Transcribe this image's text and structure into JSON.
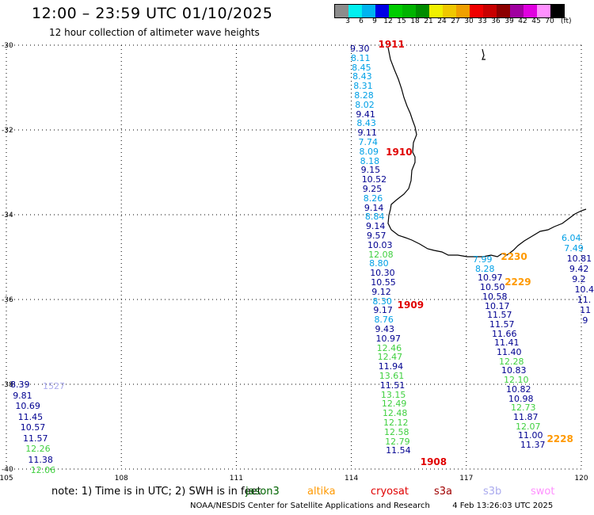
{
  "header": {
    "title": "12:00 – 23:59 UTC 01/10/2025",
    "subtitle": "12 hour collection of altimeter wave heights"
  },
  "colorbar": {
    "colors": [
      "#8c8c8c",
      "#00f0f0",
      "#00b4f0",
      "#0000e6",
      "#00cd00",
      "#00b400",
      "#008c00",
      "#f0f000",
      "#f0c800",
      "#f0a000",
      "#f00000",
      "#c80000",
      "#8c0000",
      "#a000a0",
      "#e000e0",
      "#ff90ff",
      "#000000"
    ],
    "labels": [
      "3",
      "6",
      "9",
      "12",
      "15",
      "18",
      "21",
      "24",
      "27",
      "30",
      "33",
      "36",
      "39",
      "42",
      "45",
      "70"
    ],
    "unit": "(ft)"
  },
  "axes": {
    "lon_ticks": [
      "105",
      "108",
      "111",
      "114",
      "117",
      "120"
    ],
    "lat_ticks": [
      "-30",
      "-32",
      "-34",
      "-36",
      "-38",
      "-40"
    ]
  },
  "satellite_colors": {
    "jason3": "#000090",
    "cryosat": "#00b4f0",
    "s3a": "#00d000",
    "s3b": "#00d000",
    "saral": "#aaaaee",
    "swot": "#ff90ff"
  },
  "tracks": [
    {
      "time": "1911",
      "time_color": "#e00000",
      "lon": 114.1,
      "lat_start": -30.0,
      "lat_step": -0.2,
      "values": [
        {
          "v": "9.30",
          "c": "#000090"
        },
        {
          "v": "8.11",
          "c": "#00a0e6"
        },
        {
          "v": "8.45",
          "c": "#00a0e6"
        },
        {
          "v": "8.43",
          "c": "#00a0e6"
        },
        {
          "v": "8.31",
          "c": "#00a0e6"
        },
        {
          "v": "8.28",
          "c": "#00a0e6"
        },
        {
          "v": "8.02",
          "c": "#00a0e6"
        },
        {
          "v": "9.41",
          "c": "#000090"
        },
        {
          "v": "8.43",
          "c": "#00a0e6"
        },
        {
          "v": "9.11",
          "c": "#000090"
        },
        {
          "v": "7.74",
          "c": "#00a0e6"
        },
        {
          "v": "8.09",
          "c": "#00a0e6"
        },
        {
          "v": "8.18",
          "c": "#00a0e6"
        },
        {
          "v": "9.15",
          "c": "#000090"
        },
        {
          "v": "10.52",
          "c": "#000090"
        },
        {
          "v": "9.25",
          "c": "#000090"
        },
        {
          "v": "8.26",
          "c": "#00a0e6"
        },
        {
          "v": "9.14",
          "c": "#000090"
        },
        {
          "v": "8.84",
          "c": "#00a0e6"
        },
        {
          "v": "9.14",
          "c": "#000090"
        },
        {
          "v": "9.57",
          "c": "#000090"
        },
        {
          "v": "10.03",
          "c": "#000090"
        },
        {
          "v": "12.08",
          "c": "#40d040"
        },
        {
          "v": "8.80",
          "c": "#00a0e6"
        },
        {
          "v": "10.30",
          "c": "#000090"
        },
        {
          "v": "10.55",
          "c": "#000090"
        },
        {
          "v": "9.12",
          "c": "#000090"
        },
        {
          "v": "8.30",
          "c": "#00a0e6"
        },
        {
          "v": "9.17",
          "c": "#000090"
        },
        {
          "v": "8.76",
          "c": "#00a0e6"
        },
        {
          "v": "9.43",
          "c": "#000090"
        },
        {
          "v": "10.97",
          "c": "#000090"
        },
        {
          "v": "12.46",
          "c": "#40d040"
        },
        {
          "v": "12.47",
          "c": "#40d040"
        },
        {
          "v": "11.94",
          "c": "#000090"
        },
        {
          "v": "13.61",
          "c": "#40d040"
        },
        {
          "v": "11.51",
          "c": "#000090"
        },
        {
          "v": "13.15",
          "c": "#40d040"
        },
        {
          "v": "12.49",
          "c": "#40d040"
        },
        {
          "v": "12.48",
          "c": "#40d040"
        },
        {
          "v": "12.12",
          "c": "#40d040"
        },
        {
          "v": "12.58",
          "c": "#40d040"
        },
        {
          "v": "12.79",
          "c": "#40d040"
        },
        {
          "v": "11.54",
          "c": "#000090"
        }
      ],
      "time_labels": [
        {
          "t": "1911",
          "lat": -30.0,
          "lon": 114.7,
          "c": "#e00000"
        },
        {
          "t": "1910",
          "lat": -32.55,
          "lon": 114.9,
          "c": "#e00000"
        },
        {
          "t": "1909",
          "lat": -36.15,
          "lon": 115.2,
          "c": "#e00000"
        },
        {
          "t": "1908",
          "lat": -39.85,
          "lon": 115.8,
          "c": "#e00000"
        }
      ]
    },
    {
      "time": "2230",
      "time_color": "#ff9900",
      "values": [
        {
          "v": "7.99",
          "c": "#00a0e6"
        },
        {
          "v": "8.28",
          "c": "#00a0e6"
        },
        {
          "v": "10.97",
          "c": "#000090"
        },
        {
          "v": "10.50",
          "c": "#000090"
        },
        {
          "v": "10.58",
          "c": "#000090"
        },
        {
          "v": "10.17",
          "c": "#000090"
        },
        {
          "v": "11.57",
          "c": "#000090"
        },
        {
          "v": "11.57",
          "c": "#000090"
        },
        {
          "v": "11.66",
          "c": "#000090"
        },
        {
          "v": "11.41",
          "c": "#000090"
        },
        {
          "v": "11.40",
          "c": "#000090"
        },
        {
          "v": "12.28",
          "c": "#40d040"
        },
        {
          "v": "10.83",
          "c": "#000090"
        },
        {
          "v": "12.10",
          "c": "#40d040"
        },
        {
          "v": "10.82",
          "c": "#000090"
        },
        {
          "v": "10.98",
          "c": "#000090"
        },
        {
          "v": "12.73",
          "c": "#40d040"
        },
        {
          "v": "11.87",
          "c": "#000090"
        },
        {
          "v": "12.07",
          "c": "#40d040"
        },
        {
          "v": "11.00",
          "c": "#000090"
        },
        {
          "v": "11.37",
          "c": "#000090"
        }
      ],
      "time_labels": [
        {
          "t": "2230",
          "lat": -35.0,
          "lon": 117.9,
          "c": "#ff9900"
        },
        {
          "t": "2229",
          "lat": -35.6,
          "lon": 118.0,
          "c": "#ff9900"
        },
        {
          "t": "2228",
          "lat": -39.3,
          "lon": 119.1,
          "c": "#ff9900"
        }
      ]
    },
    {
      "values": [
        {
          "v": "6.04",
          "c": "#00a0e6"
        },
        {
          "v": "7.49",
          "c": "#00a0e6"
        },
        {
          "v": "10.81",
          "c": "#000090"
        },
        {
          "v": "9.42",
          "c": "#000090"
        },
        {
          "v": "9.2",
          "c": "#000090"
        },
        {
          "v": "10.4",
          "c": "#000090"
        },
        {
          "v": "11.",
          "c": "#000090"
        },
        {
          "v": "11",
          "c": "#000090"
        },
        {
          "v": "9",
          "c": "#000090"
        }
      ]
    },
    {
      "time_labels": [
        {
          "t": "1527",
          "lat": -38.05,
          "lon": 105.95,
          "c": "#aaaaee"
        }
      ],
      "values": [
        {
          "v": "8.39",
          "c": "#000090"
        },
        {
          "v": "9.81",
          "c": "#000090"
        },
        {
          "v": "10.69",
          "c": "#000090"
        },
        {
          "v": "11.45",
          "c": "#000090"
        },
        {
          "v": "10.57",
          "c": "#000090"
        },
        {
          "v": "11.57",
          "c": "#000090"
        },
        {
          "v": "12.26",
          "c": "#40d040"
        },
        {
          "v": "11.38",
          "c": "#000090"
        },
        {
          "v": "12.06",
          "c": "#40d040"
        }
      ]
    }
  ],
  "footer": {
    "note": "note: 1) Time is in UTC; 2) SWH is in feet",
    "sat_jason3": "jason3",
    "sat_altika": "altika",
    "sat_cryosat": "cryosat",
    "sat_s3a": "s3a",
    "sat_s3b": "s3b",
    "sat_swot": "swot",
    "credit": "NOAA/NESDIS Center for Satellite Applications and Research",
    "timestamp": "4 Feb 13:26:03 UTC 2025"
  }
}
